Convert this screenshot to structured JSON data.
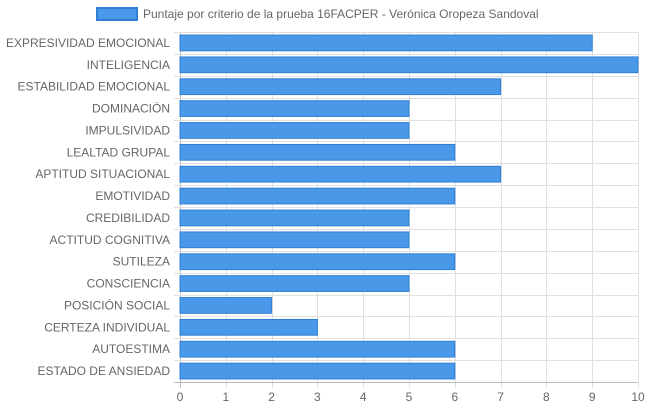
{
  "chart_data": {
    "type": "bar",
    "orientation": "horizontal",
    "title": "",
    "xlabel": "",
    "ylabel": "",
    "xlim": [
      0,
      10
    ],
    "x_ticks": [
      0,
      1,
      2,
      3,
      4,
      5,
      6,
      7,
      8,
      9,
      10
    ],
    "grid": true,
    "legend_position": "top",
    "categories": [
      "EXPRESIVIDAD EMOCIONAL",
      "INTELIGENCIA",
      "ESTABILIDAD EMOCIONAL",
      "DOMINACIÓN",
      "IMPULSIVIDAD",
      "LEALTAD GRUPAL",
      "APTITUD SITUACIONAL",
      "EMOTIVIDAD",
      "CREDIBILIDAD",
      "ACTITUD COGNITIVA",
      "SUTILEZA",
      "CONSCIENCIA",
      "POSICIÓN SOCIAL",
      "CERTEZA INDIVIDUAL",
      "AUTOESTIMA",
      "ESTADO DE ANSIEDAD"
    ],
    "series": [
      {
        "name": "Puntaje por criterio de la prueba 16FACPER - Verónica Oropeza Sandoval",
        "values": [
          9,
          10,
          7,
          5,
          5,
          6,
          7,
          6,
          5,
          5,
          6,
          5,
          2,
          3,
          6,
          6
        ],
        "color": "#4a99e9",
        "border_color": "#2f7fd6"
      }
    ]
  }
}
